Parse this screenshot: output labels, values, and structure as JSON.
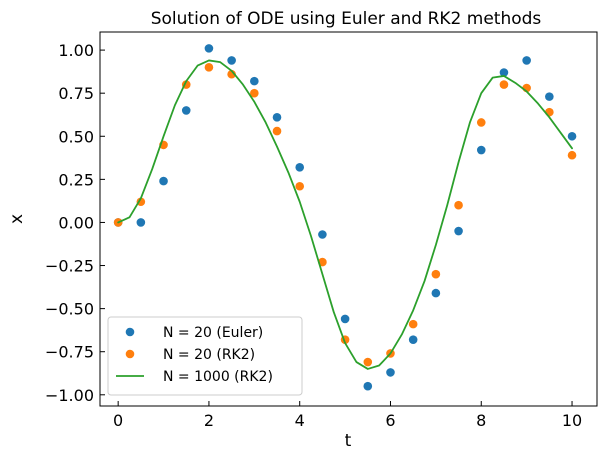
{
  "chart_data": {
    "type": "line",
    "title": "Solution of ODE using Euler and RK2 methods",
    "xlabel": "t",
    "ylabel": "x",
    "xlim": [
      -0.4,
      10.55
    ],
    "ylim": [
      -1.065,
      1.105
    ],
    "xticks": [
      0,
      2,
      4,
      6,
      8,
      10
    ],
    "xtick_labels": [
      "0",
      "2",
      "4",
      "6",
      "8",
      "10"
    ],
    "yticks": [
      1.0,
      0.75,
      0.5,
      0.25,
      0.0,
      -0.25,
      -0.5,
      -0.75,
      -1.0
    ],
    "ytick_labels": [
      "1.00",
      "0.75",
      "0.50",
      "0.25",
      "0.00",
      "−0.25",
      "−0.50",
      "−0.75",
      "−1.00"
    ],
    "grid": false,
    "legend_position": "lower-left",
    "series": [
      {
        "name": "N = 20 (Euler)",
        "kind": "scatter",
        "color": "#1f77b4",
        "x": [
          0,
          0.5,
          1.0,
          1.5,
          2.0,
          2.5,
          3.0,
          3.5,
          4.0,
          4.5,
          5.0,
          5.5,
          6.0,
          6.5,
          7.0,
          7.5,
          8.0,
          8.5,
          9.0,
          9.5,
          10.0
        ],
        "y": [
          0.0,
          0.0,
          0.24,
          0.65,
          1.01,
          0.94,
          0.82,
          0.61,
          0.32,
          -0.07,
          -0.56,
          -0.95,
          -0.87,
          -0.68,
          -0.41,
          -0.05,
          0.42,
          0.87,
          0.94,
          0.73,
          0.5
        ]
      },
      {
        "name": "N = 20 (RK2)",
        "kind": "scatter",
        "color": "#ff7f0e",
        "x": [
          0,
          0.5,
          1.0,
          1.5,
          2.0,
          2.5,
          3.0,
          3.5,
          4.0,
          4.5,
          5.0,
          5.5,
          6.0,
          6.5,
          7.0,
          7.5,
          8.0,
          8.5,
          9.0,
          9.5,
          10.0
        ],
        "y": [
          0.0,
          0.12,
          0.45,
          0.8,
          0.9,
          0.86,
          0.75,
          0.53,
          0.21,
          -0.23,
          -0.68,
          -0.81,
          -0.76,
          -0.59,
          -0.3,
          0.1,
          0.58,
          0.8,
          0.78,
          0.64,
          0.39
        ]
      },
      {
        "name": "N = 1000 (RK2)",
        "kind": "line",
        "color": "#2ca02c",
        "x": [
          0,
          0.25,
          0.5,
          0.75,
          1.0,
          1.25,
          1.5,
          1.75,
          2.0,
          2.25,
          2.5,
          2.75,
          3.0,
          3.25,
          3.5,
          3.75,
          4.0,
          4.25,
          4.5,
          4.75,
          5.0,
          5.25,
          5.5,
          5.75,
          6.0,
          6.25,
          6.5,
          6.75,
          7.0,
          7.25,
          7.5,
          7.75,
          8.0,
          8.25,
          8.5,
          8.75,
          9.0,
          9.25,
          9.5,
          9.75,
          10.0
        ],
        "y": [
          0.0,
          0.03,
          0.14,
          0.31,
          0.5,
          0.68,
          0.82,
          0.91,
          0.94,
          0.93,
          0.88,
          0.8,
          0.7,
          0.58,
          0.44,
          0.29,
          0.12,
          -0.08,
          -0.3,
          -0.52,
          -0.7,
          -0.81,
          -0.85,
          -0.83,
          -0.76,
          -0.65,
          -0.51,
          -0.34,
          -0.13,
          0.1,
          0.35,
          0.58,
          0.75,
          0.84,
          0.85,
          0.81,
          0.76,
          0.69,
          0.61,
          0.52,
          0.43
        ]
      }
    ]
  }
}
